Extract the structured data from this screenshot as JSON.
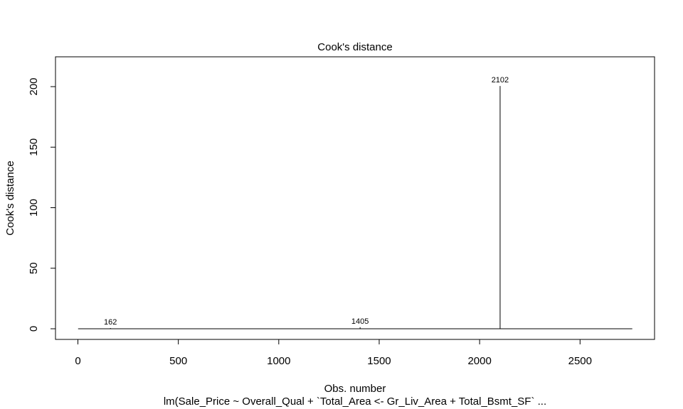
{
  "chart_data": {
    "type": "line",
    "title": "Cook's distance",
    "xlabel": "Obs. number",
    "ylabel": "Cook's distance",
    "subtitle": "lm(Sale_Price ~ Overall_Qual + `Total_Area <- Gr_Liv_Area + Total_Bsmt_SF`  ...",
    "xlim": [
      0,
      2760
    ],
    "ylim": [
      0,
      200
    ],
    "x_ticks": [
      0,
      500,
      1000,
      1500,
      2000,
      2500
    ],
    "y_ticks": [
      0,
      50,
      100,
      150,
      200
    ],
    "n_obs": 2760,
    "baseline": 0,
    "series": [
      {
        "x": [
          162,
          1405,
          2102
        ],
        "values": [
          0.6,
          1.3,
          200.5
        ]
      }
    ],
    "labeled_points": [
      {
        "label": "162",
        "x": 162,
        "y": 0.6
      },
      {
        "label": "1405",
        "x": 1405,
        "y": 1.3
      },
      {
        "label": "2102",
        "x": 2102,
        "y": 200.5
      }
    ],
    "grid": false,
    "legend": "none"
  }
}
